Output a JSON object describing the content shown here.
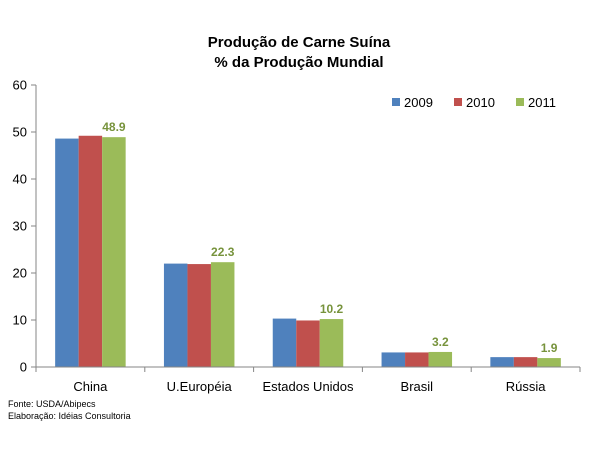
{
  "chart_data": {
    "type": "bar",
    "title": [
      "Produção de Carne Suína",
      "% da Produção Mundial"
    ],
    "categories": [
      "China",
      "U.Européia",
      "Estados Unidos",
      "Brasil",
      "Rússia"
    ],
    "series": [
      {
        "name": "2009",
        "color": "#4f81bd",
        "values": [
          48.6,
          22.0,
          10.3,
          3.1,
          2.1
        ]
      },
      {
        "name": "2010",
        "color": "#c0504d",
        "values": [
          49.2,
          21.9,
          9.9,
          3.1,
          2.1
        ]
      },
      {
        "name": "2011",
        "color": "#9bbb59",
        "values": [
          48.9,
          22.3,
          10.2,
          3.2,
          1.9
        ]
      }
    ],
    "data_labels": {
      "series": "2011",
      "color": "#77933c",
      "values": [
        "48.9",
        "22.3",
        "10.2",
        "3.2",
        "1.9"
      ]
    },
    "ylim": [
      0,
      60
    ],
    "yticks": [
      0,
      10,
      20,
      30,
      40,
      50,
      60
    ],
    "xlabel": "",
    "ylabel": "",
    "grid": false,
    "legend_position": "top-right"
  },
  "footer": {
    "source": "Fonte: USDA/Abipecs",
    "elaboration": "Elaboração: Idéias Consultoria"
  }
}
